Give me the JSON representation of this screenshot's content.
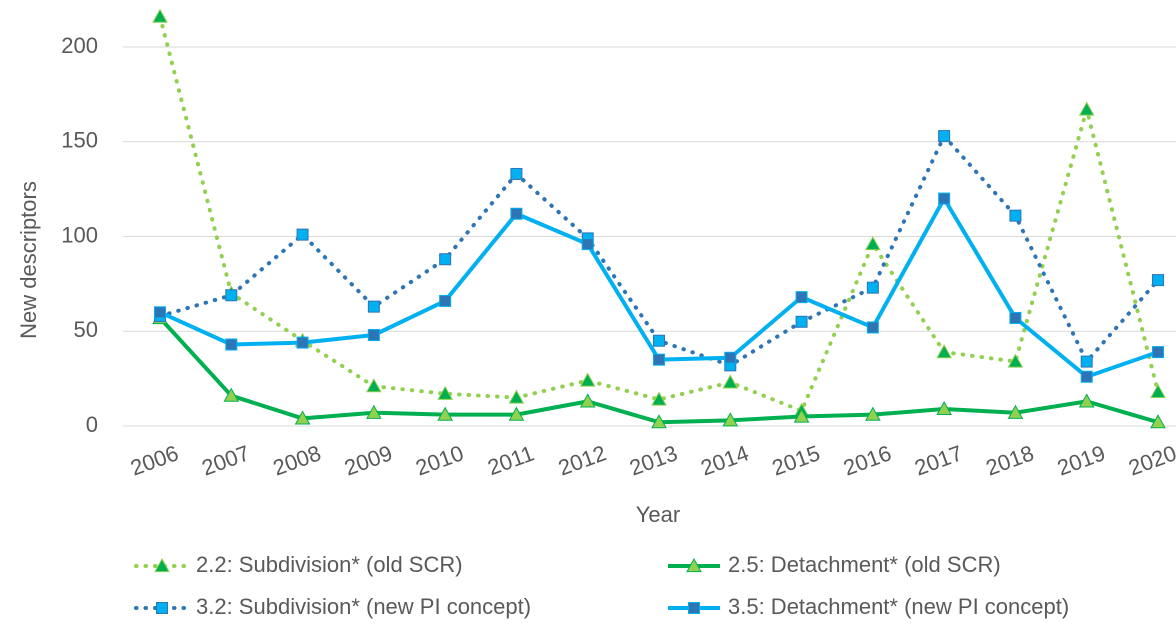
{
  "chart_data": {
    "type": "line",
    "xlabel": "Year",
    "ylabel": "New descriptors",
    "categories": [
      "2006",
      "2007",
      "2008",
      "2009",
      "2010",
      "2011",
      "2012",
      "2013",
      "2014",
      "2015",
      "2016",
      "2017",
      "2018",
      "2019",
      "2020"
    ],
    "series": [
      {
        "name": "2.2: Subdivision* (old SCR)",
        "color": "#92d050",
        "marker_color": "#00b050",
        "line_style": "dotted",
        "marker": "triangle",
        "values": [
          216,
          70,
          45,
          21,
          17,
          15,
          24,
          14,
          23,
          8,
          96,
          39,
          34,
          167,
          18
        ]
      },
      {
        "name": "2.5: Detachment* (old SCR)",
        "color": "#00b050",
        "marker_color": "#92d050",
        "line_style": "solid",
        "marker": "triangle",
        "values": [
          57,
          16,
          4,
          7,
          6,
          6,
          13,
          2,
          3,
          5,
          6,
          9,
          7,
          13,
          2
        ]
      },
      {
        "name": "3.2: Subdivision* (new PI concept)",
        "color": "#2e75b6",
        "marker_color": "#00b0f0",
        "line_style": "dotted",
        "marker": "square",
        "values": [
          58,
          69,
          101,
          63,
          88,
          133,
          99,
          45,
          32,
          55,
          73,
          153,
          111,
          34,
          77
        ]
      },
      {
        "name": "3.5: Detachment* (new PI concept)",
        "color": "#00b0f0",
        "marker_color": "#2e75b6",
        "line_style": "solid",
        "marker": "square",
        "values": [
          60,
          43,
          44,
          48,
          66,
          112,
          96,
          35,
          36,
          68,
          52,
          120,
          57,
          26,
          39
        ]
      }
    ],
    "ylim": [
      0,
      200
    ],
    "yticks": [
      0,
      50,
      100,
      150,
      200
    ],
    "grid": true,
    "legend": "bottom"
  }
}
